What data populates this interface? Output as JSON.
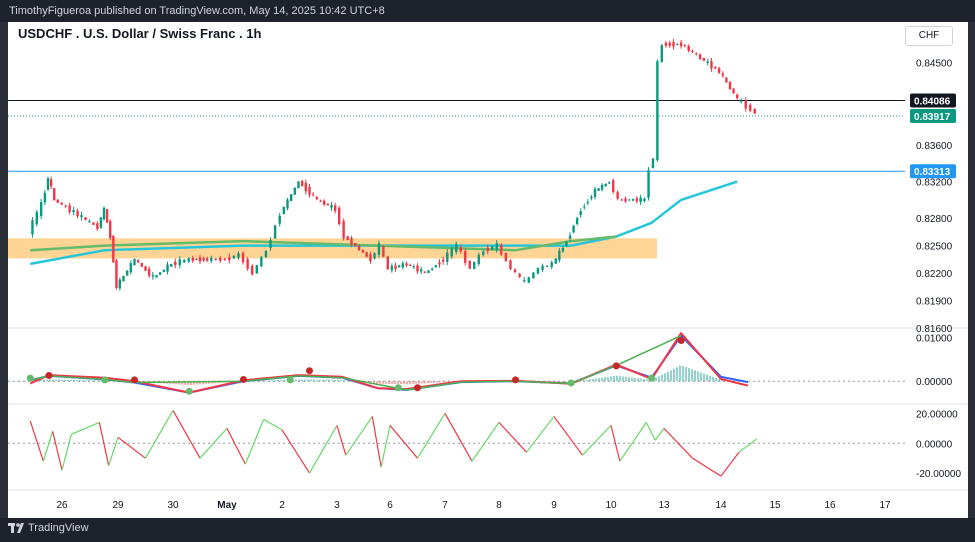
{
  "header": {
    "publisher_line": "TimothyFigueroa published on TradingView.com, May 14, 2025 10:42 UTC+8"
  },
  "footer": {
    "brand": "TradingView"
  },
  "chart_data": [
    {
      "type": "candlestick",
      "title": "USDCHF . U.S. Dollar / Swiss Franc . 1h",
      "currency": "CHF",
      "x_tick_labels": [
        "26",
        "29",
        "30",
        "May",
        "2",
        "3",
        "6",
        "7",
        "8",
        "9",
        "10",
        "13",
        "14",
        "15",
        "16",
        "17"
      ],
      "y_ticks": [
        "0.84500",
        "0.83600",
        "0.83200",
        "0.82800",
        "0.82500",
        "0.82200",
        "0.81900",
        "0.81600"
      ],
      "ylim": [
        0.816,
        0.849
      ],
      "horizontal_lines": [
        {
          "label": "0.84086",
          "value": 0.84086,
          "color": "#131722"
        },
        {
          "label": "0.83917",
          "value": 0.83917,
          "color": "#089981",
          "style": "dotted"
        },
        {
          "label": "0.83313",
          "value": 0.83313,
          "color": "#2196f3"
        }
      ],
      "zone": {
        "low": 0.8236,
        "high": 0.8258,
        "color": "#ffb74d",
        "from_date": "Apr 24",
        "to_date": "May 12"
      },
      "colors": {
        "up": "#089981",
        "down": "#f23645",
        "ma_slow": "#26c6da",
        "ma_fast": "#66bb6a"
      },
      "price_path": [
        [
          "Apr 24",
          0.8265
        ],
        [
          "Apr 25",
          0.8295
        ],
        [
          "Apr 25",
          0.8325
        ],
        [
          "Apr 25",
          0.83
        ],
        [
          "Apr 28",
          0.827
        ],
        [
          "Apr 28",
          0.829
        ],
        [
          "Apr 28",
          0.826
        ],
        [
          "Apr 29",
          0.8205
        ],
        [
          "Apr 29",
          0.8235
        ],
        [
          "Apr 29",
          0.8215
        ],
        [
          "Apr 30",
          0.823
        ],
        [
          "Apr 30",
          0.8235
        ],
        [
          "Apr 30",
          0.8235
        ],
        [
          "May 1",
          0.8235
        ],
        [
          "May 1",
          0.824
        ],
        [
          "May 1",
          0.822
        ],
        [
          "May 1",
          0.8245
        ],
        [
          "May 2",
          0.8285
        ],
        [
          "May 2",
          0.832
        ],
        [
          "May 2",
          0.83
        ],
        [
          "May 3",
          0.829
        ],
        [
          "May 3",
          0.826
        ],
        [
          "May 5",
          0.8235
        ],
        [
          "May 5",
          0.825
        ],
        [
          "May 6",
          0.8225
        ],
        [
          "May 6",
          0.823
        ],
        [
          "May 6",
          0.822
        ],
        [
          "May 7",
          0.8235
        ],
        [
          "May 7",
          0.825
        ],
        [
          "May 7",
          0.8225
        ],
        [
          "May 7",
          0.8245
        ],
        [
          "May 8",
          0.825
        ],
        [
          "May 8",
          0.8225
        ],
        [
          "May 8",
          0.821
        ],
        [
          "May 8",
          0.8225
        ],
        [
          "May 9",
          0.823
        ],
        [
          "May 9",
          0.8255
        ],
        [
          "May 9",
          0.829
        ],
        [
          "May 9",
          0.831
        ],
        [
          "May 10",
          0.832
        ],
        [
          "May 10",
          0.83
        ],
        [
          "May 12",
          0.83
        ],
        [
          "May 12",
          0.8335
        ],
        [
          "May 12",
          0.8345
        ],
        [
          "May 12",
          0.845
        ],
        [
          "May 13",
          0.847
        ],
        [
          "May 13",
          0.847
        ],
        [
          "May 13",
          0.8455
        ],
        [
          "May 14",
          0.844
        ],
        [
          "May 14",
          0.841
        ],
        [
          "May 14",
          0.8395
        ]
      ],
      "ma_slow": [
        [
          "Apr 24",
          0.823
        ],
        [
          "Apr 28",
          0.8245
        ],
        [
          "May 1",
          0.825
        ],
        [
          "May 6",
          0.825
        ],
        [
          "May 9",
          0.825
        ],
        [
          "May 10",
          0.826
        ],
        [
          "May 12",
          0.8275
        ],
        [
          "May 13",
          0.83
        ],
        [
          "May 14",
          0.832
        ]
      ],
      "ma_fast": [
        [
          "Apr 24",
          0.8245
        ],
        [
          "Apr 28",
          0.825
        ],
        [
          "May 1",
          0.8255
        ],
        [
          "May 5",
          0.825
        ],
        [
          "May 8",
          0.8245
        ],
        [
          "May 9",
          0.8255
        ],
        [
          "May 10",
          0.826
        ]
      ]
    },
    {
      "type": "line",
      "name": "oscillator",
      "y_ticks": [
        "0.01000",
        "0.00000"
      ],
      "ylim": [
        -0.0043,
        0.0117
      ],
      "series": [
        {
          "color": "#2962ff",
          "points": [
            [
              "Apr 24",
              0.0002
            ],
            [
              "Apr 25",
              0.0012
            ],
            [
              "Apr 28",
              0.0004
            ],
            [
              "Apr 29",
              -0.0003
            ],
            [
              "Apr 30",
              -0.0026
            ],
            [
              "May 1",
              0.0
            ],
            [
              "May 2",
              0.0012
            ],
            [
              "May 3",
              0.0008
            ],
            [
              "May 5",
              -0.0016
            ],
            [
              "May 6",
              -0.002
            ],
            [
              "May 7",
              -0.0002
            ],
            [
              "May 8",
              0.0
            ],
            [
              "May 9",
              -0.0005
            ],
            [
              "May 10",
              0.0036
            ],
            [
              "May 12",
              0.0008
            ],
            [
              "May 13",
              0.0104
            ],
            [
              "May 14",
              0.001
            ],
            [
              "May 14",
              -0.0002
            ]
          ]
        },
        {
          "color": "#f23645",
          "points": [
            [
              "Apr 24",
              -0.0005
            ],
            [
              "Apr 25",
              0.0014
            ],
            [
              "Apr 28",
              0.0008
            ],
            [
              "Apr 29",
              0.0
            ],
            [
              "Apr 30",
              -0.0026
            ],
            [
              "May 1",
              0.0002
            ],
            [
              "May 2",
              0.0014
            ],
            [
              "May 3",
              0.001
            ],
            [
              "May 5",
              -0.0016
            ],
            [
              "May 6",
              -0.0018
            ],
            [
              "May 7",
              0.0
            ],
            [
              "May 8",
              0.0001
            ],
            [
              "May 9",
              -0.0006
            ],
            [
              "May 10",
              0.0038
            ],
            [
              "May 12",
              0.0005
            ],
            [
              "May 13",
              0.011
            ],
            [
              "May 14",
              0.0005
            ],
            [
              "May 14",
              -0.001
            ]
          ]
        }
      ],
      "cross_markers": [
        {
          "date": "Apr 24",
          "value": 0.0007,
          "color": "#66bb6a"
        },
        {
          "date": "Apr 25",
          "value": 0.0013,
          "color": "#c62828"
        },
        {
          "date": "Apr 28",
          "value": 0.0003,
          "color": "#66bb6a"
        },
        {
          "date": "Apr 29",
          "value": 0.0003,
          "color": "#c62828"
        },
        {
          "date": "Apr 30",
          "value": -0.0023,
          "color": "#66bb6a"
        },
        {
          "date": "May 1",
          "value": 0.0004,
          "color": "#c62828"
        },
        {
          "date": "May 2",
          "value": 0.0003,
          "color": "#66bb6a"
        },
        {
          "date": "May 2",
          "value": 0.0024,
          "color": "#c62828"
        },
        {
          "date": "May 6",
          "value": -0.0015,
          "color": "#66bb6a"
        },
        {
          "date": "May 6",
          "value": -0.0015,
          "color": "#c62828"
        },
        {
          "date": "May 8",
          "value": 0.0003,
          "color": "#c62828"
        },
        {
          "date": "May 9",
          "value": -0.0004,
          "color": "#66bb6a"
        },
        {
          "date": "May 10",
          "value": 0.0035,
          "color": "#c62828"
        },
        {
          "date": "May 12",
          "value": 0.0007,
          "color": "#66bb6a"
        },
        {
          "date": "May 13",
          "value": 0.0093,
          "color": "#c62828"
        }
      ]
    },
    {
      "type": "line",
      "name": "momentum",
      "y_ticks": [
        "20.00000",
        "0.00000",
        "-20.00000"
      ],
      "ylim": [
        -30,
        25
      ],
      "up_color": "#66d966",
      "down_color": "#f23645",
      "values": [
        [
          "Apr 24",
          15
        ],
        [
          "Apr 25",
          -12
        ],
        [
          "Apr 25",
          8
        ],
        [
          "Apr 26",
          -18
        ],
        [
          "Apr 26",
          6
        ],
        [
          "Apr 28",
          14
        ],
        [
          "Apr 28",
          -15
        ],
        [
          "Apr 29",
          4
        ],
        [
          "Apr 29",
          -10
        ],
        [
          "Apr 30",
          22
        ],
        [
          "Apr 30",
          -10
        ],
        [
          "May 1",
          10
        ],
        [
          "May 1",
          -14
        ],
        [
          "May 1",
          16
        ],
        [
          "May 2",
          9
        ],
        [
          "May 2",
          -20
        ],
        [
          "May 3",
          12
        ],
        [
          "May 3",
          -8
        ],
        [
          "May 5",
          18
        ],
        [
          "May 5",
          -16
        ],
        [
          "May 6",
          12
        ],
        [
          "May 6",
          -10
        ],
        [
          "May 7",
          20
        ],
        [
          "May 7",
          -12
        ],
        [
          "May 8",
          14
        ],
        [
          "May 8",
          -6
        ],
        [
          "May 9",
          18
        ],
        [
          "May 9",
          -8
        ],
        [
          "May 10",
          12
        ],
        [
          "May 10",
          -12
        ],
        [
          "May 12",
          14
        ],
        [
          "May 12",
          2
        ],
        [
          "May 13",
          10
        ],
        [
          "May 13",
          -10
        ],
        [
          "May 14",
          -22
        ],
        [
          "May 14",
          -6
        ],
        [
          "May 14",
          3
        ]
      ]
    }
  ]
}
